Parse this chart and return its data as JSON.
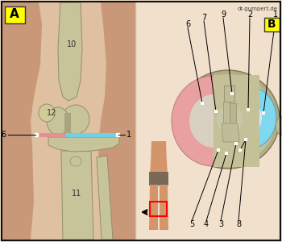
{
  "watermark": "dr-gumpert.de",
  "bg_color": "#f0e0cc",
  "border_color": "#111111",
  "label_A_bg": "#ffff00",
  "label_B_bg": "#ffff00",
  "skin_bg": "#ddb48a",
  "skin_light": "#e8c8a8",
  "bone_color": "#c8c49a",
  "bone_mid": "#b8b488",
  "bone_dark": "#a0a070",
  "cartilage_blue": "#70d0e8",
  "cartilage_pink": "#e89090",
  "pink_meniscus": "#e8a0a0",
  "blue_meniscus": "#80d8f0",
  "body_skin": "#d4956a",
  "body_pants": "#7a6858",
  "arrow_color": "#111111",
  "line_color": "#111111",
  "white_sq": "#ffffff"
}
